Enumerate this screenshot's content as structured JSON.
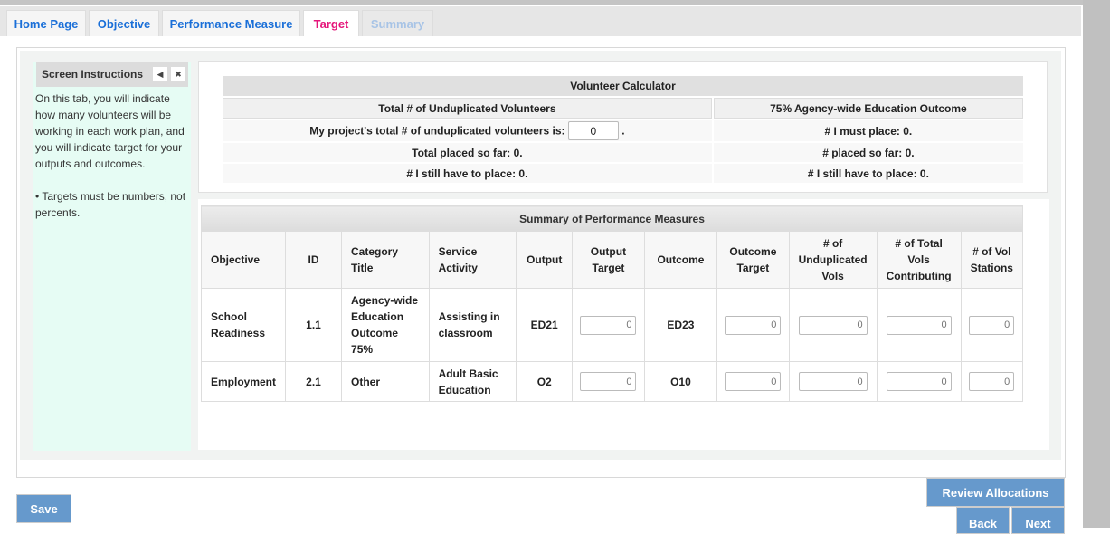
{
  "tabs": [
    {
      "label": "Home Page"
    },
    {
      "label": "Objective"
    },
    {
      "label": "Performance Measure"
    },
    {
      "label": "Target",
      "state": "active"
    },
    {
      "label": "Summary",
      "state": "disabled"
    }
  ],
  "instructions": {
    "title": "Screen Instructions",
    "text1": "On this tab, you will indicate how many volunteers will be working in each work plan, and you will indicate target for your outputs and outcomes.",
    "text2": "• Targets must be numbers, not percents."
  },
  "calculator": {
    "title": "Volunteer Calculator",
    "col1": "Total # of Unduplicated Volunteers",
    "col2": "75% Agency-wide Education Outcome",
    "total_label": "My project's total # of unduplicated volunteers is:",
    "total_value": "0",
    "total_suffix": ".",
    "placed": "Total placed so far: 0.",
    "still": "# I still have to place: 0.",
    "must": "# I must place: 0.",
    "placed2": "# placed so far: 0.",
    "still2": "# I still have to place: 0."
  },
  "summary": {
    "title": "Summary of Performance Measures",
    "headers": [
      "Objective",
      "ID",
      "Category Title",
      "Service Activity",
      "Output",
      "Output Target",
      "Outcome",
      "Outcome Target",
      "# of Unduplicated Vols",
      "# of Total Vols Contributing",
      "# of Vol Stations"
    ],
    "rows": [
      {
        "objective": "School Readiness",
        "id": "1.1",
        "category": "Agency-wide Education Outcome 75%",
        "activity": "Assisting in classroom",
        "output": "ED21",
        "output_target": "0",
        "outcome": "ED23",
        "outcome_target": "0",
        "undup": "0",
        "total": "0",
        "stations": "0"
      },
      {
        "objective": "Employment",
        "id": "2.1",
        "category": "Other",
        "activity": "Adult Basic Education",
        "output": "O2",
        "output_target": "0",
        "outcome": "O10",
        "outcome_target": "0",
        "undup": "0",
        "total": "0",
        "stations": "0"
      }
    ]
  },
  "buttons": {
    "save": "Save",
    "review": "Review Allocations",
    "back": "Back",
    "next": "Next"
  }
}
